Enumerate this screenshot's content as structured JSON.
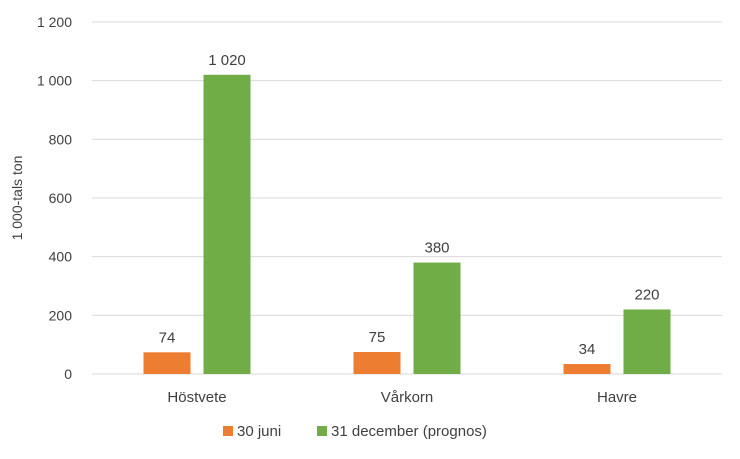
{
  "chart_data": {
    "type": "bar",
    "categories": [
      "Höstvete",
      "Vårkorn",
      "Havre"
    ],
    "series": [
      {
        "name": "30 juni",
        "values": [
          74,
          75,
          34
        ],
        "labels": [
          "74",
          "75",
          "34"
        ],
        "color": "#ED7D31"
      },
      {
        "name": "31 december (prognos)",
        "values": [
          1020,
          380,
          220
        ],
        "labels": [
          "1 020",
          "380",
          "220"
        ],
        "color": "#70AD47"
      }
    ],
    "ylabel": "1 000-tals ton",
    "ylim": [
      0,
      1200
    ],
    "yticks": [
      0,
      200,
      400,
      600,
      800,
      1000,
      1200
    ],
    "ytick_labels": [
      "0",
      "200",
      "400",
      "600",
      "800",
      "1 000",
      "1 200"
    ],
    "grid": true,
    "gridline_color": "#D9D9D9",
    "legend_position": "bottom"
  }
}
